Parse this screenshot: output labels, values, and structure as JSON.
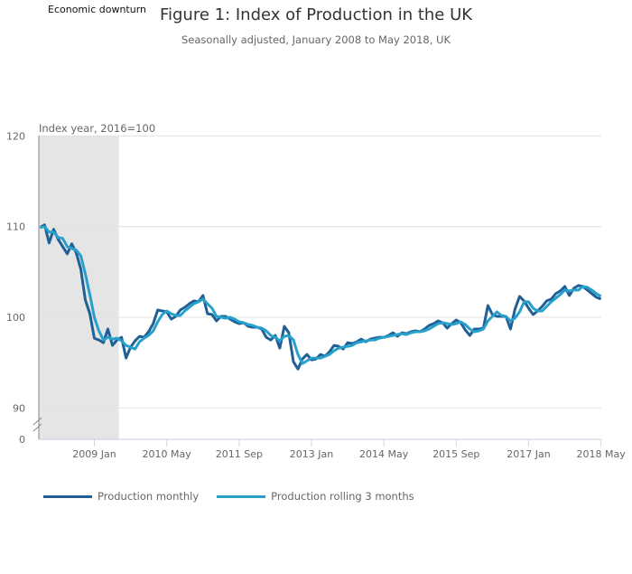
{
  "chart_data": {
    "type": "line",
    "title": "Figure 1: Index of Production in the UK",
    "subtitle": "Seasonally adjusted, January 2008 to May 2018, UK",
    "ylabel": "Index year, 2016=100",
    "annotation": "Economic downturn",
    "shaded_period": [
      "2008-01",
      "2009-06"
    ],
    "x_start": "2008-01",
    "x_end": "2018-05",
    "x_frequency": "monthly",
    "x_ticks": [
      "2009 Jan",
      "2010 May",
      "2011 Sep",
      "2013 Jan",
      "2014 May",
      "2015 Sep",
      "2017 Jan",
      "2018 May"
    ],
    "x_tick_months": [
      "2009-01",
      "2010-05",
      "2011-09",
      "2013-01",
      "2014-05",
      "2015-09",
      "2017-01",
      "2018-05"
    ],
    "y_ticks": [
      120,
      110,
      100,
      90,
      0
    ],
    "ylim": [
      90,
      120
    ],
    "y_axis_break": true,
    "grid": "horizontal",
    "legend_placement": "bottom",
    "colors": {
      "monthly": "#206095",
      "rolling": "#27a0cc",
      "shading": "#e5e5e5"
    },
    "series": [
      {
        "name": "Production monthly",
        "values": [
          109.9,
          110.2,
          108.2,
          109.7,
          108.6,
          107.8,
          107.0,
          108.1,
          107.1,
          105.3,
          101.9,
          100.4,
          97.7,
          97.5,
          97.2,
          98.7,
          96.9,
          97.5,
          97.8,
          95.5,
          96.7,
          97.4,
          97.9,
          97.8,
          98.4,
          99.3,
          100.8,
          100.7,
          100.6,
          99.8,
          100.1,
          100.8,
          101.1,
          101.5,
          101.8,
          101.7,
          102.4,
          100.4,
          100.3,
          99.6,
          100.1,
          100.1,
          99.8,
          99.5,
          99.3,
          99.4,
          99.0,
          98.9,
          98.9,
          98.7,
          97.8,
          97.5,
          98.0,
          96.6,
          99.0,
          98.3,
          95.1,
          94.3,
          95.4,
          95.9,
          95.3,
          95.4,
          95.9,
          95.7,
          96.2,
          96.9,
          96.8,
          96.5,
          97.2,
          97.1,
          97.3,
          97.6,
          97.3,
          97.6,
          97.7,
          97.8,
          97.8,
          98.0,
          98.3,
          97.9,
          98.3,
          98.2,
          98.4,
          98.5,
          98.4,
          98.7,
          99.1,
          99.3,
          99.6,
          99.4,
          98.8,
          99.3,
          99.7,
          99.4,
          98.6,
          98.0,
          98.7,
          98.7,
          98.8,
          101.3,
          100.3,
          100.1,
          100.1,
          100.1,
          98.7,
          100.9,
          102.3,
          101.8,
          101.0,
          100.3,
          100.7,
          101.2,
          101.8,
          102.0,
          102.6,
          102.9,
          103.4,
          102.4,
          103.2,
          103.5,
          103.4,
          103.0,
          102.6,
          102.2,
          102.0
        ]
      },
      {
        "name": "Production rolling 3 months",
        "values": [
          109.9,
          110.0,
          109.4,
          109.4,
          108.8,
          108.7,
          107.8,
          107.6,
          107.4,
          106.8,
          104.8,
          102.5,
          100.0,
          98.5,
          97.5,
          97.8,
          97.6,
          97.7,
          97.4,
          96.9,
          96.7,
          96.5,
          97.3,
          97.7,
          98.0,
          98.5,
          99.5,
          100.3,
          100.7,
          100.4,
          100.2,
          100.2,
          100.7,
          101.1,
          101.5,
          101.7,
          102.0,
          101.5,
          101.0,
          100.1,
          100.0,
          99.9,
          100.0,
          99.8,
          99.5,
          99.4,
          99.2,
          99.1,
          98.9,
          98.8,
          98.5,
          98.0,
          97.8,
          97.4,
          97.9,
          98.0,
          97.5,
          95.9,
          94.9,
          95.2,
          95.5,
          95.5,
          95.5,
          95.7,
          95.9,
          96.3,
          96.6,
          96.7,
          96.8,
          96.9,
          97.2,
          97.3,
          97.4,
          97.5,
          97.5,
          97.7,
          97.8,
          97.9,
          98.0,
          98.1,
          98.2,
          98.1,
          98.3,
          98.4,
          98.4,
          98.5,
          98.7,
          99.0,
          99.3,
          99.4,
          99.3,
          99.2,
          99.3,
          99.5,
          99.2,
          98.7,
          98.4,
          98.5,
          98.7,
          99.6,
          100.1,
          100.6,
          100.2,
          100.1,
          99.6,
          99.9,
          100.6,
          101.7,
          101.7,
          101.0,
          100.7,
          100.7,
          101.2,
          101.7,
          102.1,
          102.5,
          103.0,
          102.9,
          103.0,
          103.0,
          103.4,
          103.3,
          103.0,
          102.6,
          102.3
        ]
      }
    ]
  }
}
